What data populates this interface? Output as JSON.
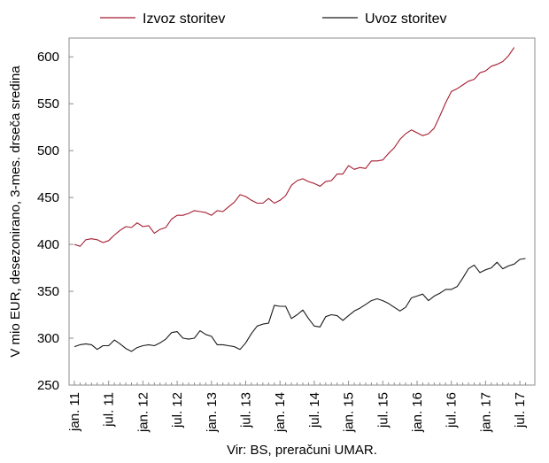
{
  "chart_data": {
    "type": "line",
    "ylabel": "V mio EUR, desezonirano, 3-mes. drseča sredina",
    "source": "Vir: BS, preračuni UMAR.",
    "ylim": [
      250,
      620
    ],
    "yticks": [
      250,
      300,
      350,
      400,
      450,
      500,
      550,
      600
    ],
    "grid": false,
    "legend_position": "top",
    "x_tick_labels": [
      "jan. 11",
      "jul. 11",
      "jan. 12",
      "jul. 12",
      "jan. 13",
      "jul. 13",
      "jan. 14",
      "jul. 14",
      "jan. 15",
      "jul. 15",
      "jan. 16",
      "jul. 16",
      "jan. 17",
      "jul. 17"
    ],
    "x_start": "jan. 11",
    "series": [
      {
        "name": "Izvoz storitev",
        "color": "#a51c30",
        "values": [
          400,
          398,
          405,
          406,
          405,
          402,
          404,
          410,
          415,
          419,
          418,
          423,
          419,
          420,
          412,
          416,
          418,
          427,
          431,
          431,
          433,
          436,
          435,
          434,
          431,
          436,
          435,
          440,
          445,
          453,
          451,
          447,
          444,
          444,
          449,
          444,
          447,
          452,
          463,
          468,
          470,
          467,
          465,
          462,
          467,
          468,
          475,
          475,
          484,
          480,
          482,
          481,
          489,
          489,
          490,
          497,
          503,
          512,
          518,
          522,
          519,
          516,
          518,
          524,
          537,
          551,
          563,
          566,
          570,
          574,
          576,
          583,
          585,
          590,
          592,
          595,
          601,
          610
        ]
      },
      {
        "name": "Uvoz storitev",
        "color": "#1a1a1a",
        "values": [
          291,
          293,
          294,
          293,
          288,
          292,
          292,
          298,
          294,
          289,
          286,
          290,
          292,
          293,
          292,
          295,
          299,
          306,
          307,
          300,
          299,
          300,
          308,
          304,
          302,
          293,
          293,
          292,
          291,
          288,
          295,
          305,
          313,
          315,
          316,
          335,
          334,
          334,
          321,
          325,
          330,
          321,
          313,
          312,
          323,
          325,
          324,
          319,
          324,
          329,
          332,
          336,
          340,
          342,
          340,
          337,
          333,
          329,
          333,
          343,
          345,
          347,
          340,
          345,
          348,
          352,
          352,
          355,
          364,
          374,
          378,
          370,
          373,
          375,
          381,
          374,
          377,
          379,
          384,
          385
        ]
      }
    ]
  }
}
